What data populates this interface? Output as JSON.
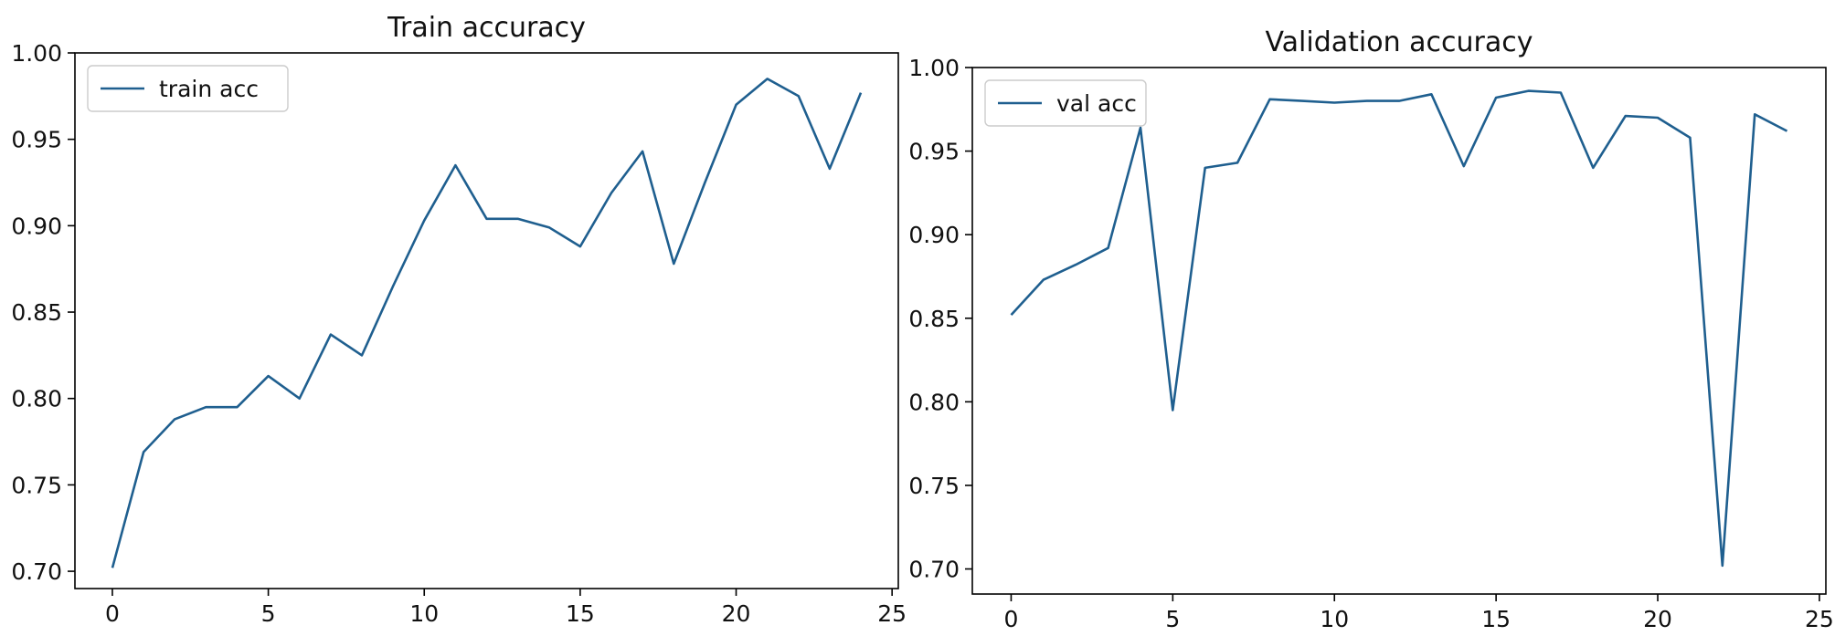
{
  "colors": {
    "series": "#1f5f8f"
  },
  "chart_data": [
    {
      "type": "line",
      "title": "Train accuracy",
      "xlim": [
        -1.2,
        25.2
      ],
      "ylim": [
        0.69,
        1.0
      ],
      "xticks": [
        0,
        5,
        10,
        15,
        20,
        25
      ],
      "yticks": [
        0.7,
        0.75,
        0.8,
        0.85,
        0.9,
        0.95,
        1.0
      ],
      "ytick_labels": [
        "0.70",
        "0.75",
        "0.80",
        "0.85",
        "0.90",
        "0.95",
        "1.00"
      ],
      "legend_position": "top-left",
      "grid": false,
      "series": [
        {
          "name": "train acc",
          "x": [
            0,
            1,
            2,
            3,
            4,
            5,
            6,
            7,
            8,
            9,
            10,
            11,
            12,
            13,
            14,
            15,
            16,
            17,
            18,
            19,
            20,
            21,
            22,
            23,
            24
          ],
          "y": [
            0.702,
            0.769,
            0.788,
            0.795,
            0.795,
            0.813,
            0.8,
            0.837,
            0.825,
            0.865,
            0.903,
            0.935,
            0.904,
            0.904,
            0.899,
            0.888,
            0.919,
            0.943,
            0.878,
            0.925,
            0.97,
            0.985,
            0.975,
            0.933,
            0.977
          ]
        }
      ]
    },
    {
      "type": "line",
      "title": "Validation accuracy",
      "xlim": [
        -1.2,
        25.2
      ],
      "ylim": [
        0.685,
        1.0
      ],
      "xticks": [
        0,
        5,
        10,
        15,
        20,
        25
      ],
      "yticks": [
        0.7,
        0.75,
        0.8,
        0.85,
        0.9,
        0.95,
        1.0
      ],
      "ytick_labels": [
        "0.70",
        "0.75",
        "0.80",
        "0.85",
        "0.90",
        "0.95",
        "1.00"
      ],
      "legend_position": "top-left",
      "grid": false,
      "series": [
        {
          "name": "val acc",
          "x": [
            0,
            1,
            2,
            3,
            4,
            5,
            6,
            7,
            8,
            9,
            10,
            11,
            12,
            13,
            14,
            15,
            16,
            17,
            18,
            19,
            20,
            21,
            22,
            23,
            24
          ],
          "y": [
            0.852,
            0.873,
            0.882,
            0.892,
            0.964,
            0.795,
            0.94,
            0.943,
            0.981,
            0.98,
            0.979,
            0.98,
            0.98,
            0.984,
            0.941,
            0.982,
            0.986,
            0.985,
            0.94,
            0.971,
            0.97,
            0.958,
            0.702,
            0.972,
            0.962
          ]
        }
      ]
    }
  ]
}
